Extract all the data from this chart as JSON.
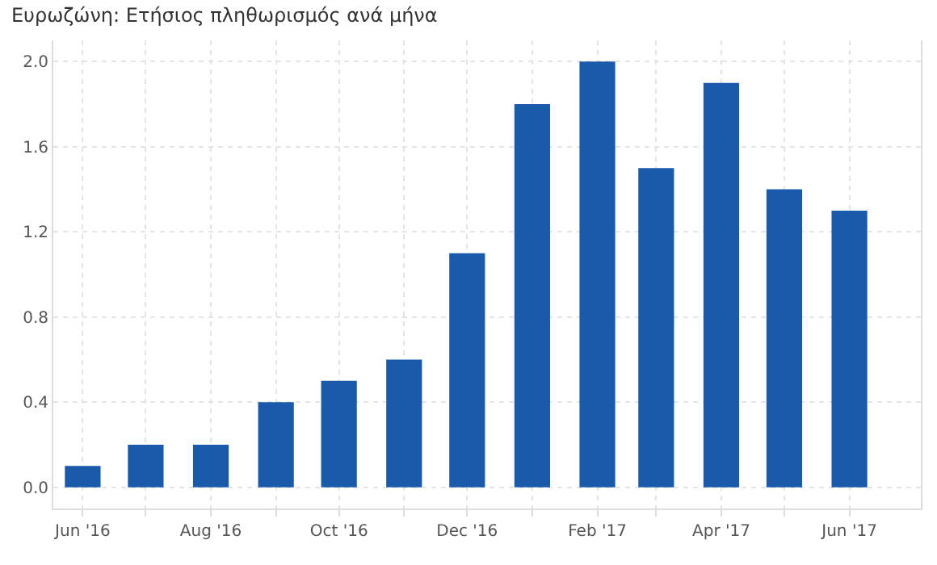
{
  "chart_data": {
    "type": "bar",
    "title": "Ευρωζώνη: Ετήσιος πληθωρισμός ανά μήνα",
    "x": [
      "2016-06",
      "2016-07",
      "2016-08",
      "2016-09",
      "2016-10",
      "2016-11",
      "2016-12",
      "2017-01",
      "2017-02",
      "2017-03",
      "2017-04",
      "2017-05",
      "2017-06"
    ],
    "values": [
      0.1,
      0.2,
      0.2,
      0.4,
      0.5,
      0.6,
      1.1,
      1.8,
      2.0,
      1.5,
      1.9,
      1.4,
      1.3
    ],
    "color": "#1a5aab",
    "xlim": [
      "2016-05-18",
      "2017-07-05"
    ],
    "xticks": [
      {
        "value": "2016-06",
        "label": "Jun '16"
      },
      {
        "value": "2016-07",
        "label": null
      },
      {
        "value": "2016-08",
        "label": "Aug '16"
      },
      {
        "value": "2016-09",
        "label": null
      },
      {
        "value": "2016-10",
        "label": "Oct '16"
      },
      {
        "value": "2016-11",
        "label": null
      },
      {
        "value": "2016-12",
        "label": "Dec '16"
      },
      {
        "value": "2017-01",
        "label": null
      },
      {
        "value": "2017-02",
        "label": "Feb '17"
      },
      {
        "value": "2017-03",
        "label": null
      },
      {
        "value": "2017-04",
        "label": "Apr '17"
      },
      {
        "value": "2017-05",
        "label": null
      },
      {
        "value": "2017-06",
        "label": "Jun '17"
      }
    ],
    "ylim": [
      -0.1,
      2.1
    ],
    "yticks": [
      {
        "value": 0,
        "label": "0.0"
      },
      {
        "value": 0.4,
        "label": "0.4"
      },
      {
        "value": 0.8,
        "label": "0.8"
      },
      {
        "value": 1.2,
        "label": "1.2"
      },
      {
        "value": 1.6,
        "label": "1.6"
      },
      {
        "value": 2,
        "label": "2.0"
      }
    ],
    "grid": true
  }
}
